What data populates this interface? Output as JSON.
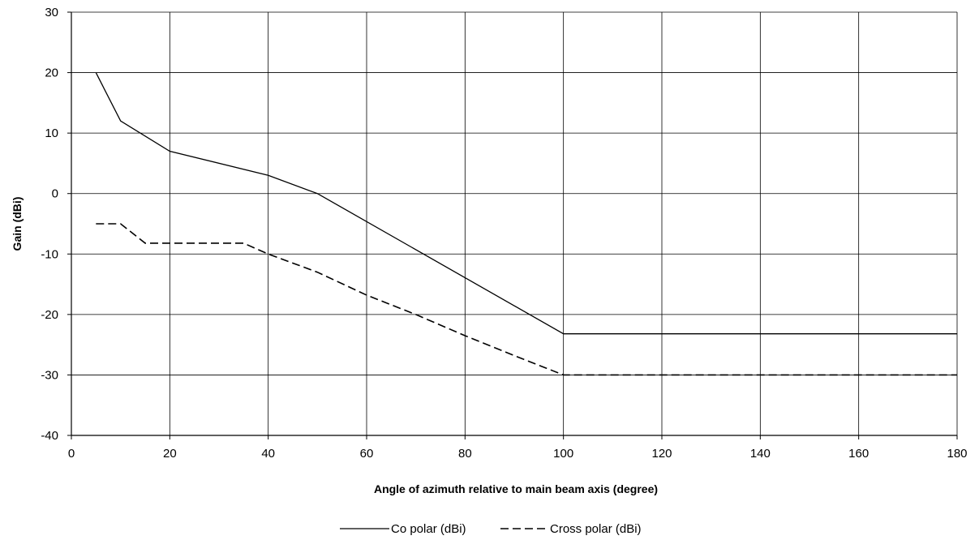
{
  "chart_data": {
    "type": "line",
    "title": "",
    "xlabel": "Angle of azimuth relative to main beam axis (degree)",
    "ylabel": "Gain (dBi)",
    "xlim": [
      0,
      180
    ],
    "ylim": [
      -40,
      30
    ],
    "x_ticks": [
      0,
      20,
      40,
      60,
      80,
      100,
      120,
      140,
      160,
      180
    ],
    "y_ticks": [
      30,
      20,
      10,
      0,
      -10,
      -20,
      -30,
      -40
    ],
    "grid": true,
    "legend_position": "bottom",
    "series": [
      {
        "name": "Co polar (dBi)",
        "line_style": "solid",
        "color": "#000000",
        "x": [
          5,
          10,
          20,
          40,
          50,
          100,
          180
        ],
        "y": [
          20,
          12,
          7,
          3,
          0,
          -23.2,
          -23.2
        ]
      },
      {
        "name": "Cross polar (dBi)",
        "line_style": "dashed",
        "color": "#000000",
        "x": [
          5,
          10,
          15,
          35,
          40,
          50,
          60,
          70,
          80,
          90,
          100,
          180
        ],
        "y": [
          -5,
          -5,
          -8.2,
          -8.2,
          -10,
          -13,
          -16.8,
          -20,
          -23.5,
          -26.8,
          -30,
          -30
        ]
      }
    ]
  }
}
